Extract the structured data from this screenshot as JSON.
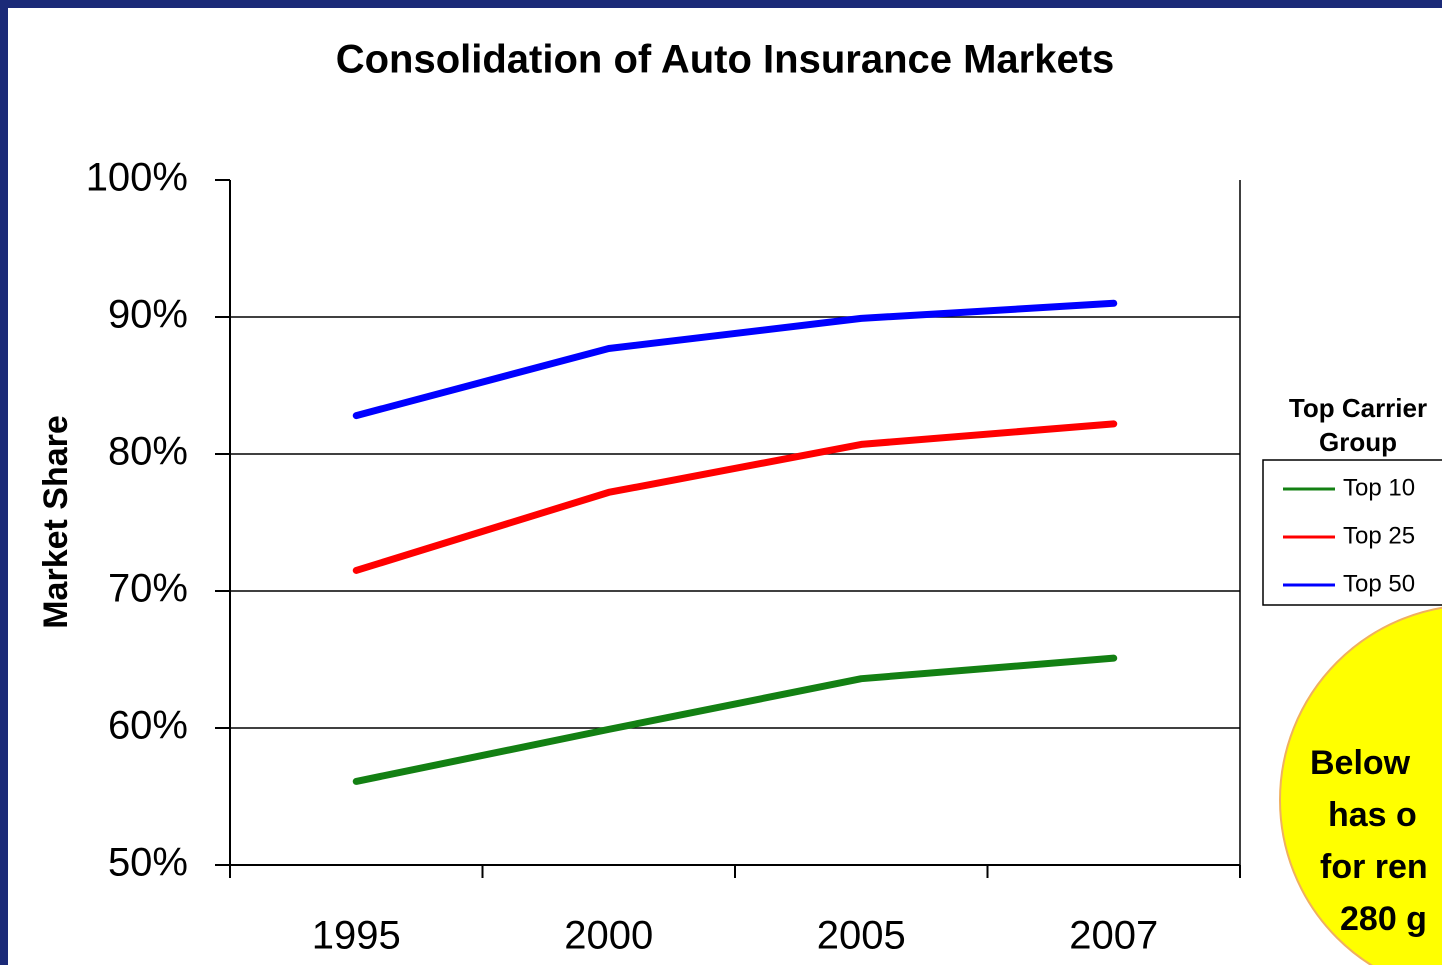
{
  "chart_data": {
    "type": "line",
    "title": "Consolidation of Auto Insurance Markets",
    "y_label": "Market Share",
    "categories": [
      "1995",
      "2000",
      "2005",
      "2007"
    ],
    "series": [
      {
        "name": "Top 10",
        "color": "#138013",
        "values": [
          56.1,
          59.9,
          63.6,
          65.1
        ]
      },
      {
        "name": "Top 25",
        "color": "#ff0000",
        "values": [
          71.5,
          77.2,
          80.7,
          82.2
        ]
      },
      {
        "name": "Top 50",
        "color": "#0000ff",
        "values": [
          82.8,
          87.7,
          89.9,
          91.0
        ]
      }
    ],
    "ylim": [
      50,
      100
    ],
    "yticks": [
      {
        "value": 50,
        "label": "50%"
      },
      {
        "value": 60,
        "label": "60%"
      },
      {
        "value": 70,
        "label": "70%"
      },
      {
        "value": 80,
        "label": "80%"
      },
      {
        "value": 90,
        "label": "90%"
      },
      {
        "value": 100,
        "label": "100%"
      }
    ],
    "grid": true,
    "legend_title": "Top Carrier Group",
    "legend_position": "right",
    "annotation": [
      "Below",
      "has o",
      "for ren",
      "280 g"
    ]
  }
}
